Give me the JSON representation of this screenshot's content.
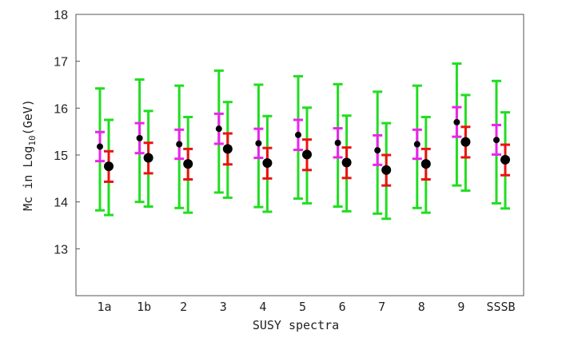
{
  "chart_data": {
    "type": "errorbar",
    "xlabel": "SUSY spectra",
    "ylabel_prefix": "Mc in Log",
    "ylabel_subscript": "10",
    "ylabel_suffix": "(GeV)",
    "categories": [
      "1a",
      "1b",
      "2",
      "3",
      "4",
      "5",
      "6",
      "7",
      "8",
      "9",
      "SSSB"
    ],
    "ylim": [
      12,
      18
    ],
    "yticks": [
      "13",
      "14",
      "15",
      "16",
      "17",
      "18"
    ],
    "colors": {
      "green": "#22dd22",
      "magenta": "#ee22ee",
      "red": "#ee1111",
      "point": "#000000"
    },
    "series": [
      {
        "points": [
          15.18,
          15.36,
          15.23,
          15.56,
          15.25,
          15.43,
          15.26,
          15.1,
          15.23,
          15.7,
          15.32
        ],
        "inner_low": [
          14.87,
          15.04,
          14.92,
          15.24,
          14.94,
          15.11,
          14.95,
          14.79,
          14.92,
          15.39,
          15.01
        ],
        "inner_high": [
          15.49,
          15.68,
          15.54,
          15.88,
          15.56,
          15.75,
          15.57,
          15.42,
          15.54,
          16.02,
          15.64
        ],
        "outer_low": [
          13.82,
          14.0,
          13.87,
          14.2,
          13.89,
          14.07,
          13.9,
          13.75,
          13.87,
          14.35,
          13.97
        ],
        "outer_high": [
          16.42,
          16.61,
          16.48,
          16.8,
          16.5,
          16.68,
          16.51,
          16.35,
          16.48,
          16.95,
          16.58
        ]
      },
      {
        "points": [
          14.76,
          14.94,
          14.81,
          15.13,
          14.83,
          15.01,
          14.84,
          14.68,
          14.81,
          15.28,
          14.9
        ],
        "inner_low": [
          14.43,
          14.61,
          14.48,
          14.8,
          14.5,
          14.68,
          14.51,
          14.35,
          14.48,
          14.95,
          14.57
        ],
        "inner_high": [
          15.08,
          15.26,
          15.13,
          15.46,
          15.15,
          15.33,
          15.16,
          15.0,
          15.13,
          15.6,
          15.22
        ],
        "outer_low": [
          13.72,
          13.9,
          13.77,
          14.09,
          13.79,
          13.97,
          13.8,
          13.64,
          13.77,
          14.24,
          13.86
        ],
        "outer_high": [
          15.75,
          15.94,
          15.81,
          16.13,
          15.83,
          16.01,
          15.84,
          15.68,
          15.81,
          16.28,
          15.91
        ]
      }
    ]
  }
}
